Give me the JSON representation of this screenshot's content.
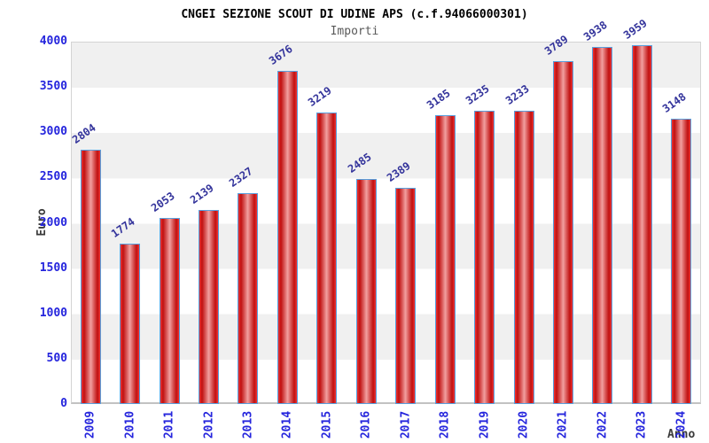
{
  "header": {
    "title": "CNGEI SEZIONE SCOUT DI UDINE APS (c.f.94066000301)",
    "subtitle": "Importi"
  },
  "chart_data": {
    "type": "bar",
    "title": "CNGEI SEZIONE SCOUT DI UDINE APS (c.f.94066000301)",
    "subtitle": "Importi",
    "categories": [
      "2009",
      "2010",
      "2011",
      "2012",
      "2013",
      "2014",
      "2015",
      "2016",
      "2017",
      "2018",
      "2019",
      "2020",
      "2021",
      "2022",
      "2023",
      "2024"
    ],
    "values": [
      2804,
      1774,
      2053,
      2139,
      2327,
      3676,
      3219,
      2485,
      2389,
      3185,
      3235,
      3233,
      3789,
      3938,
      3959,
      3148
    ],
    "xlabel": "Anno",
    "ylabel": "Euro",
    "ylim": [
      0,
      4000
    ],
    "ytick_step": 500,
    "yticks": [
      0,
      500,
      1000,
      1500,
      2000,
      2500,
      3000,
      3500,
      4000
    ],
    "legend": "none",
    "grid": "horizontal-bands-500",
    "value_labels_rotation_deg": -35,
    "xtick_rotation_deg": -90,
    "colors": {
      "bar_fill_center": "#f2a0a0",
      "bar_fill_edge": "#c01010",
      "bar_border": "#58a0de",
      "value_label_text": "#33339b",
      "tick_text": "#2525dd",
      "band_gray": "#f0f0f0",
      "band_white": "#ffffff",
      "title_text": "#000000",
      "subtitle_text": "#595959"
    }
  }
}
